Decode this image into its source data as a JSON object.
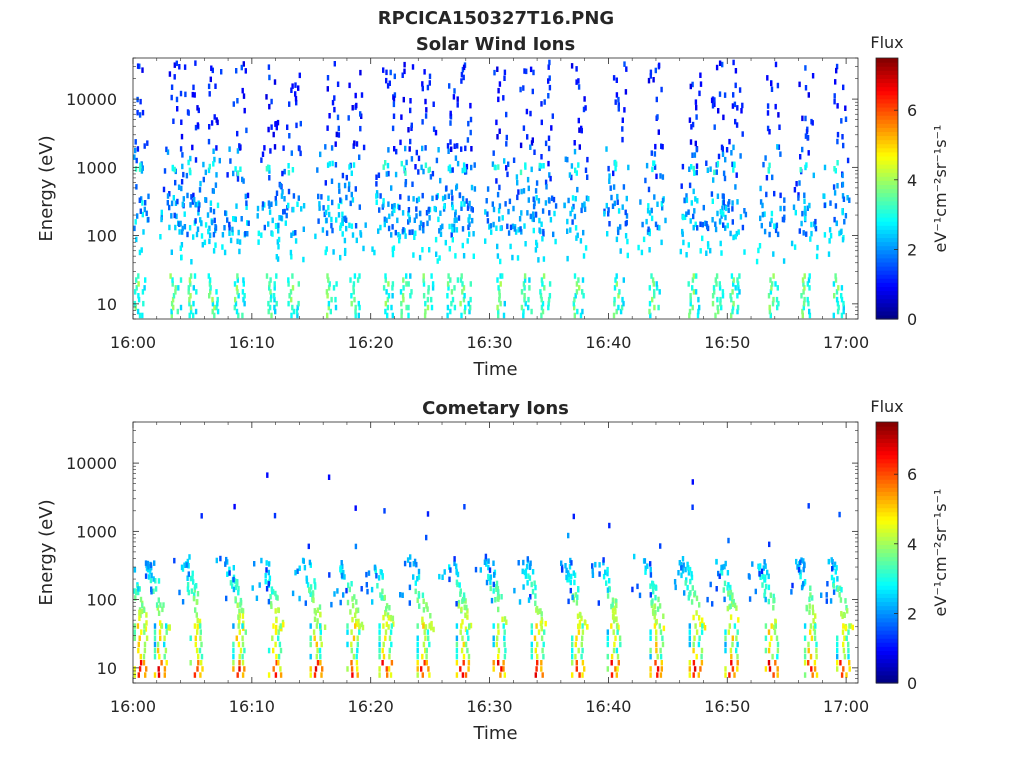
{
  "figure_title": "RPCICA150327T16.PNG",
  "chart_data": [
    {
      "type": "heatmap",
      "title": "Solar Wind Ions",
      "xlabel": "Time",
      "ylabel": "Energy (eV)",
      "x_ticks": [
        "16:00",
        "16:10",
        "16:20",
        "16:30",
        "16:40",
        "16:50",
        "17:00"
      ],
      "x_range_minutes": [
        0,
        61
      ],
      "y_scale": "log",
      "y_ticks": [
        "10",
        "100",
        "1000",
        "10000"
      ],
      "y_tick_values": [
        10,
        100,
        1000,
        10000
      ],
      "ylim": [
        6,
        40000
      ],
      "colorbar": {
        "label": "Flux",
        "unit_label": "eV⁻¹cm⁻²sr⁻¹s⁻¹",
        "ticks": [
          "0",
          "2",
          "4",
          "6"
        ],
        "range": [
          0,
          7.5
        ]
      },
      "colormap": "jet",
      "pulse_minutes": [
        0.3,
        3.3,
        4.6,
        6.5,
        8.7,
        11.4,
        13.2,
        16.4,
        18.4,
        21.2,
        22.7,
        24.6,
        26.6,
        27.7,
        30.6,
        32.8,
        34.4,
        37.2,
        40.6,
        43.6,
        46.9,
        48.9,
        50.4,
        53.6,
        56.3,
        59.1
      ],
      "bands": [
        {
          "name": "high",
          "energy_range": [
            2000,
            40000
          ],
          "flux_range": [
            0.8,
            1.6
          ]
        },
        {
          "name": "mid",
          "energy_range": [
            500,
            2000
          ],
          "flux_range": [
            1.2,
            2.6
          ]
        },
        {
          "name": "lowmid",
          "energy_range": [
            110,
            400
          ],
          "flux_range": [
            1.5,
            2.8
          ]
        },
        {
          "name": "low",
          "energy_range": [
            6,
            30
          ],
          "flux_range": [
            2.6,
            4.0
          ]
        }
      ]
    },
    {
      "type": "heatmap",
      "title": "Cometary Ions",
      "xlabel": "Time",
      "ylabel": "Energy (eV)",
      "x_ticks": [
        "16:00",
        "16:10",
        "16:20",
        "16:30",
        "16:40",
        "16:50",
        "17:00"
      ],
      "x_range_minutes": [
        0,
        61
      ],
      "y_scale": "log",
      "y_ticks": [
        "10",
        "100",
        "1000",
        "10000"
      ],
      "y_tick_values": [
        10,
        100,
        1000,
        10000
      ],
      "ylim": [
        6,
        40000
      ],
      "colorbar": {
        "label": "Flux",
        "unit_label": "eV⁻¹cm⁻²sr⁻¹s⁻¹",
        "ticks": [
          "0",
          "2",
          "4",
          "6"
        ],
        "range": [
          0,
          7.5
        ]
      },
      "colormap": "jet",
      "pulse_minutes": [
        0.5,
        2.2,
        5.2,
        8.8,
        11.8,
        15.3,
        18.4,
        21.1,
        24.3,
        27.6,
        30.7,
        33.9,
        37.3,
        40.3,
        43.9,
        47.2,
        50.2,
        53.6,
        56.9,
        59.6
      ],
      "bands": [
        {
          "name": "sparse-high",
          "energy_range": [
            1500,
            2800
          ],
          "flux_range": [
            1.0,
            1.6
          ]
        },
        {
          "name": "mid",
          "energy_range": [
            80,
            450
          ],
          "flux_range": [
            2.0,
            3.0
          ]
        },
        {
          "name": "core",
          "energy_range": [
            8,
            60
          ],
          "flux_range": [
            4.0,
            6.8
          ]
        }
      ]
    }
  ]
}
